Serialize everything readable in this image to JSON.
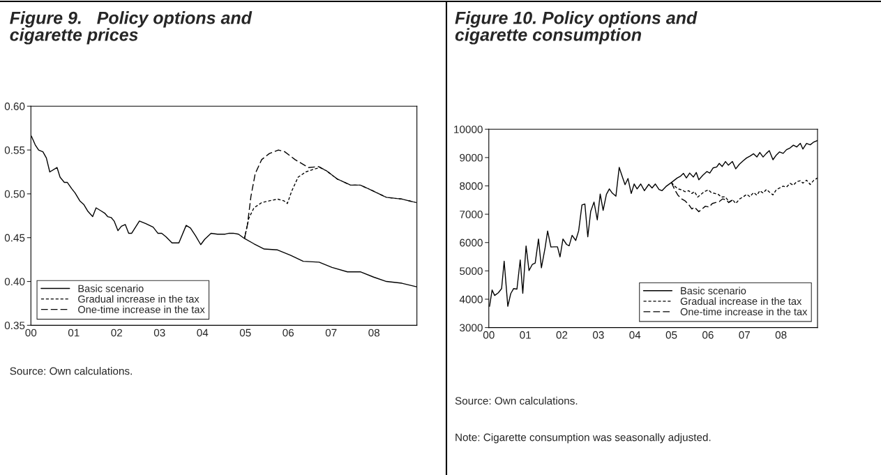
{
  "chart_data": [
    {
      "type": "line",
      "title": "Figure 9.   Policy options and\ncigarette prices",
      "annotations": [
        "Source: Own calculations."
      ],
      "xlim": [
        2000,
        2009
      ],
      "xticks": [
        {
          "value": 2000,
          "label": "00"
        },
        {
          "value": 2001,
          "label": "01"
        },
        {
          "value": 2002,
          "label": "02"
        },
        {
          "value": 2003,
          "label": "03"
        },
        {
          "value": 2004,
          "label": "04"
        },
        {
          "value": 2005,
          "label": "05"
        },
        {
          "value": 2006,
          "label": "06"
        },
        {
          "value": 2007,
          "label": "07"
        },
        {
          "value": 2008,
          "label": "08"
        }
      ],
      "ylim": [
        0.35,
        0.6
      ],
      "yticks": [
        {
          "value": 0.35,
          "label": "0.35"
        },
        {
          "value": 0.4,
          "label": "0.40"
        },
        {
          "value": 0.45,
          "label": "0.45"
        },
        {
          "value": 0.5,
          "label": "0.50"
        },
        {
          "value": 0.55,
          "label": "0.55"
        },
        {
          "value": 0.6,
          "label": "0.60"
        }
      ],
      "legend": "bottom left",
      "series": [
        {
          "name": "Basic scenario",
          "color": "#000000",
          "line_style": "solid",
          "x": [
            2000.01,
            2000.1,
            2000.18,
            2000.28,
            2000.36,
            2000.44,
            2000.61,
            2000.68,
            2000.78,
            2000.85,
            2000.95,
            2001.03,
            2001.14,
            2001.23,
            2001.33,
            2001.44,
            2001.52,
            2001.62,
            2001.72,
            2001.79,
            2001.87,
            2001.94,
            2002.03,
            2002.11,
            2002.2,
            2002.28,
            2002.35,
            2002.53,
            2002.68,
            2002.85,
            2002.96,
            2003.05,
            2003.15,
            2003.29,
            2003.45,
            2003.62,
            2003.72,
            2003.84,
            2003.96,
            2004.05,
            2004.2,
            2004.35,
            2004.53,
            2004.62,
            2004.72,
            2004.84,
            2004.98,
            2005.2,
            2005.44,
            2005.75,
            2006.05,
            2006.35,
            2006.72,
            2007.02,
            2007.38,
            2007.68,
            2007.99,
            2008.29,
            2008.65,
            2008.99
          ],
          "values": [
            0.566,
            0.556,
            0.55,
            0.548,
            0.541,
            0.525,
            0.53,
            0.519,
            0.513,
            0.513,
            0.506,
            0.501,
            0.492,
            0.488,
            0.48,
            0.474,
            0.484,
            0.481,
            0.478,
            0.474,
            0.473,
            0.469,
            0.458,
            0.463,
            0.465,
            0.455,
            0.455,
            0.469,
            0.466,
            0.462,
            0.455,
            0.455,
            0.451,
            0.444,
            0.444,
            0.464,
            0.461,
            0.452,
            0.442,
            0.448,
            0.455,
            0.454,
            0.454,
            0.455,
            0.455,
            0.454,
            0.449,
            0.443,
            0.437,
            0.436,
            0.43,
            0.423,
            0.422,
            0.416,
            0.411,
            0.411,
            0.405,
            0.4,
            0.398,
            0.394
          ]
        },
        {
          "name": "Gradual increase in the tax",
          "color": "#000000",
          "line_style": "dotted",
          "x": [
            2004.98,
            2005.08,
            2005.2,
            2005.38,
            2005.56,
            2005.75,
            2005.9,
            2005.98,
            2006.08,
            2006.23,
            2006.41,
            2006.59,
            2006.74,
            2006.9,
            2007.14,
            2007.45,
            2007.68,
            2007.99,
            2008.29,
            2008.65,
            2008.99
          ],
          "values": [
            0.449,
            0.472,
            0.484,
            0.49,
            0.492,
            0.494,
            0.492,
            0.489,
            0.503,
            0.519,
            0.525,
            0.528,
            0.53,
            0.526,
            0.517,
            0.51,
            0.51,
            0.503,
            0.496,
            0.494,
            0.49
          ]
        },
        {
          "name": "One-time increase in the tax",
          "color": "#000000",
          "line_style": "dashed",
          "x": [
            2004.98,
            2005.05,
            2005.13,
            2005.23,
            2005.38,
            2005.56,
            2005.77,
            2005.92,
            2006.16,
            2006.47,
            2006.71,
            2006.9,
            2007.14,
            2007.45,
            2007.68,
            2007.99,
            2008.29,
            2008.65,
            2008.99
          ],
          "values": [
            0.449,
            0.465,
            0.497,
            0.523,
            0.539,
            0.546,
            0.55,
            0.548,
            0.539,
            0.53,
            0.531,
            0.526,
            0.517,
            0.51,
            0.51,
            0.503,
            0.496,
            0.494,
            0.49
          ]
        }
      ]
    },
    {
      "type": "line",
      "title": "Figure 10. Policy options and\ncigarette consumption",
      "annotations": [
        "Source: Own calculations.",
        "Note: Cigarette consumption was seasonally adjusted."
      ],
      "xlim": [
        2000,
        2009
      ],
      "xticks": [
        {
          "value": 2000,
          "label": "00"
        },
        {
          "value": 2001,
          "label": "01"
        },
        {
          "value": 2002,
          "label": "02"
        },
        {
          "value": 2003,
          "label": "03"
        },
        {
          "value": 2004,
          "label": "04"
        },
        {
          "value": 2005,
          "label": "05"
        },
        {
          "value": 2006,
          "label": "06"
        },
        {
          "value": 2007,
          "label": "07"
        },
        {
          "value": 2008,
          "label": "08"
        }
      ],
      "ylim": [
        3000,
        10000
      ],
      "yticks": [
        3000,
        4000,
        5000,
        6000,
        7000,
        8000,
        9000,
        10000
      ],
      "legend": "bottom right",
      "series": [
        {
          "name": "Basic scenario",
          "color": "#000000",
          "line_style": "solid",
          "x": [
            2000.02,
            2000.09,
            2000.16,
            2000.26,
            2000.35,
            2000.42,
            2000.52,
            2000.6,
            2000.68,
            2000.77,
            2000.86,
            2000.93,
            2001.02,
            2001.1,
            2001.19,
            2001.27,
            2001.36,
            2001.44,
            2001.54,
            2001.61,
            2001.7,
            2001.79,
            2001.88,
            2001.95,
            2002.03,
            2002.13,
            2002.2,
            2002.28,
            2002.38,
            2002.46,
            2002.55,
            2002.63,
            2002.71,
            2002.79,
            2002.88,
            2002.97,
            2003.05,
            2003.13,
            2003.22,
            2003.3,
            2003.38,
            2003.48,
            2003.57,
            2003.65,
            2003.73,
            2003.81,
            2003.9,
            2003.98,
            2004.06,
            2004.16,
            2004.26,
            2004.38,
            2004.47,
            2004.56,
            2004.66,
            2004.74,
            2004.85,
            2005.0,
            2005.16,
            2005.25,
            2005.33,
            2005.41,
            2005.5,
            2005.6,
            2005.68,
            2005.75,
            2005.86,
            2005.97,
            2006.05,
            2006.14,
            2006.24,
            2006.31,
            2006.39,
            2006.48,
            2006.56,
            2006.67,
            2006.76,
            2006.86,
            2006.97,
            2007.06,
            2007.15,
            2007.25,
            2007.34,
            2007.42,
            2007.51,
            2007.6,
            2007.68,
            2007.78,
            2007.87,
            2007.96,
            2008.06,
            2008.15,
            2008.25,
            2008.34,
            2008.43,
            2008.53,
            2008.6,
            2008.7,
            2008.8,
            2008.9,
            2009.0
          ],
          "values": [
            3750,
            4325,
            4132,
            4228,
            4376,
            5341,
            3750,
            4196,
            4376,
            4357,
            5386,
            4209,
            5881,
            5013,
            5225,
            5277,
            6125,
            5109,
            5804,
            6408,
            5842,
            5849,
            5849,
            5495,
            6125,
            5932,
            5887,
            6254,
            6074,
            6415,
            7328,
            7360,
            6203,
            7103,
            7431,
            6801,
            7714,
            7135,
            7701,
            7894,
            7746,
            7637,
            8653,
            8344,
            8042,
            8260,
            7733,
            8067,
            7894,
            8067,
            7830,
            8055,
            7926,
            8067,
            7875,
            7830,
            7977,
            8119,
            8280,
            8344,
            8441,
            8280,
            8453,
            8312,
            8473,
            8215,
            8376,
            8505,
            8453,
            8633,
            8666,
            8794,
            8685,
            8859,
            8730,
            8859,
            8601,
            8762,
            8891,
            8987,
            9051,
            9135,
            9019,
            9180,
            9019,
            9148,
            9244,
            8923,
            9084,
            9199,
            9148,
            9277,
            9341,
            9437,
            9373,
            9502,
            9300,
            9500,
            9450,
            9550,
            9600
          ]
        },
        {
          "name": "Gradual increase in the tax",
          "color": "#000000",
          "line_style": "dotted",
          "x": [
            2005.0,
            2005.09,
            2005.18,
            2005.28,
            2005.37,
            2005.47,
            2005.56,
            2005.63,
            2005.72,
            2005.81,
            2005.9,
            2006.01,
            2006.09,
            2006.19,
            2006.28,
            2006.37,
            2006.47,
            2006.55,
            2006.59,
            2006.68,
            2006.76,
            2006.87,
            2006.97,
            2007.06,
            2007.15,
            2007.25,
            2007.34,
            2007.42,
            2007.51,
            2007.6,
            2007.68,
            2007.78,
            2007.87,
            2007.96,
            2008.06,
            2008.15,
            2008.25,
            2008.34,
            2008.43,
            2008.53,
            2008.6,
            2008.7,
            2008.8,
            2008.9,
            2009.0
          ],
          "values": [
            8119,
            7990,
            7894,
            7862,
            7797,
            7830,
            7733,
            7797,
            7604,
            7701,
            7797,
            7862,
            7765,
            7733,
            7701,
            7604,
            7617,
            7489,
            7444,
            7508,
            7379,
            7540,
            7617,
            7701,
            7617,
            7765,
            7669,
            7830,
            7746,
            7875,
            7785,
            7682,
            7862,
            7926,
            7990,
            7958,
            8087,
            8022,
            8151,
            8183,
            8100,
            8200,
            8050,
            8200,
            8280
          ]
        },
        {
          "name": "One-time increase in the tax",
          "color": "#000000",
          "line_style": "dashed",
          "x": [
            2005.0,
            2005.09,
            2005.18,
            2005.28,
            2005.37,
            2005.47,
            2005.56,
            2005.63,
            2005.75,
            2005.84,
            2005.93,
            2006.03,
            2006.12,
            2006.21,
            2006.31,
            2006.4,
            2006.5,
            2006.57,
            2006.68
          ],
          "values": [
            8119,
            7862,
            7669,
            7540,
            7476,
            7347,
            7186,
            7251,
            7090,
            7186,
            7283,
            7251,
            7379,
            7411,
            7444,
            7540,
            7508,
            7411,
            7508
          ]
        }
      ]
    }
  ]
}
